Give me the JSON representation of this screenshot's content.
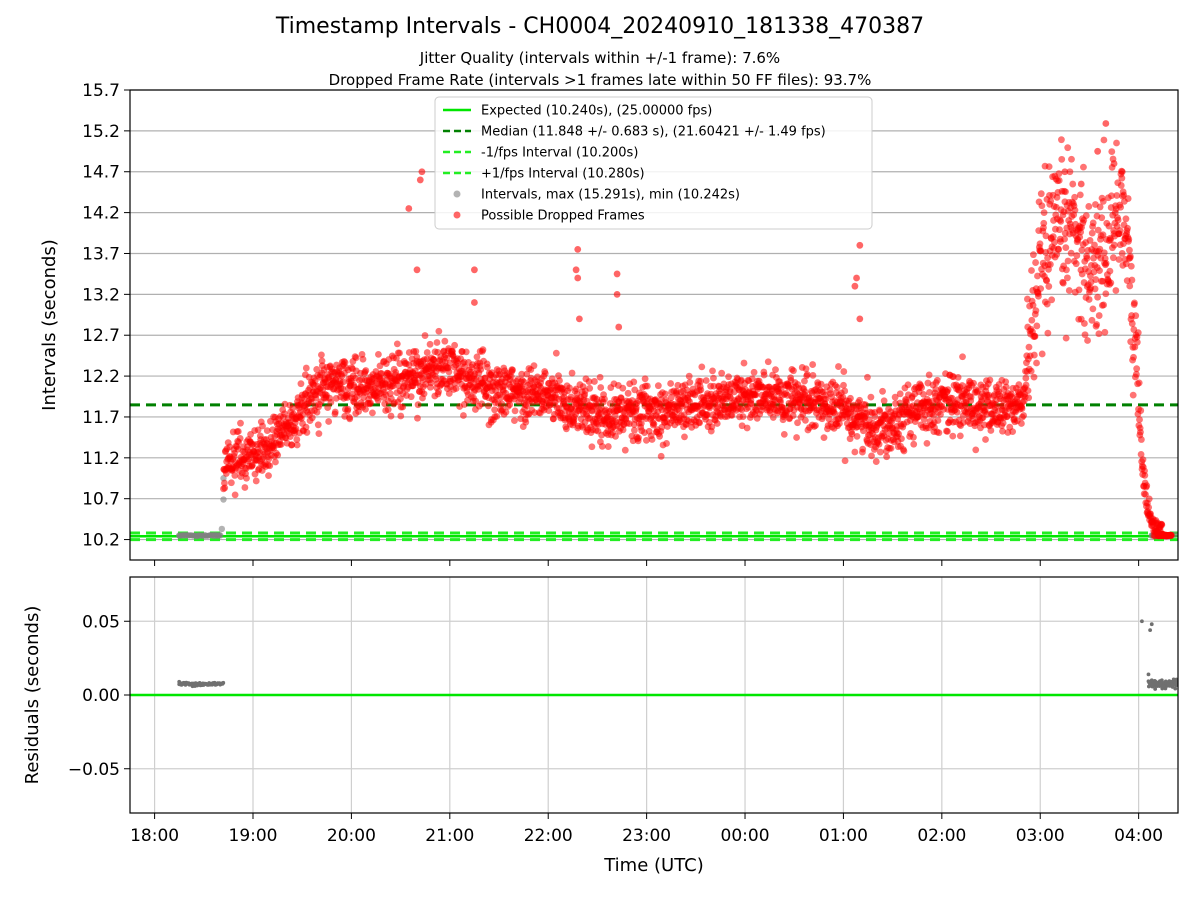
{
  "figure": {
    "title": "Timestamp Intervals - CH0004_20240910_181338_470387",
    "subtitle_1": "Jitter Quality (intervals within +/-1 frame): 7.6%",
    "subtitle_2": "Dropped Frame Rate (intervals >1 frames late within 50 FF files): 93.7%"
  },
  "chart_data": [
    {
      "type": "scatter",
      "panel": "top",
      "ylabel": "Intervals (seconds)",
      "xlabel": "",
      "ylim": [
        9.95,
        15.7
      ],
      "yticks": [
        "10.2",
        "10.7",
        "11.2",
        "11.7",
        "12.2",
        "12.7",
        "13.2",
        "13.7",
        "14.2",
        "14.7",
        "15.2",
        "15.7"
      ],
      "grid": "horizontal",
      "legend_position": "top-center",
      "reference_lines": [
        {
          "name": "Expected (10.240s), (25.00000 fps)",
          "value": 10.24,
          "style": "solid",
          "color": "#00e600"
        },
        {
          "name": "Median (11.848 +/- 0.683 s), (21.60421 +/- 1.49 fps)",
          "value": 11.848,
          "style": "dashed",
          "color": "#008000"
        },
        {
          "name": "-1/fps Interval (10.200s)",
          "value": 10.2,
          "style": "dashed",
          "color": "#22ee22"
        },
        {
          "name": "+1/fps Interval (10.280s)",
          "value": 10.28,
          "style": "dashed",
          "color": "#22ee22"
        }
      ],
      "series": [
        {
          "name": "Intervals, max (15.291s), min (10.242s)",
          "color": "#808080",
          "description_points": [
            [
              "18:15",
              10.25
            ],
            [
              "18:40",
              10.25
            ],
            [
              "18:41",
              10.33
            ],
            [
              "18:42",
              10.69
            ],
            [
              "18:42",
              10.95
            ],
            [
              "04:08",
              10.25
            ],
            [
              "04:20",
              10.25
            ],
            [
              "04:22",
              10.26
            ]
          ]
        },
        {
          "name": "Possible Dropped Frames",
          "color": "#ff0000",
          "trend": [
            [
              "18:42",
              11.0
            ],
            [
              "18:50",
              11.2
            ],
            [
              "19:10",
              11.3
            ],
            [
              "19:30",
              11.8
            ],
            [
              "19:45",
              12.1
            ],
            [
              "20:00",
              12.05
            ],
            [
              "20:20",
              12.1
            ],
            [
              "20:40",
              12.2
            ],
            [
              "20:55",
              12.35
            ],
            [
              "21:10",
              12.2
            ],
            [
              "21:30",
              12.0
            ],
            [
              "22:00",
              11.95
            ],
            [
              "22:30",
              11.75
            ],
            [
              "23:00",
              11.75
            ],
            [
              "23:30",
              11.85
            ],
            [
              "00:00",
              11.95
            ],
            [
              "00:30",
              11.9
            ],
            [
              "01:00",
              11.8
            ],
            [
              "01:20",
              11.55
            ],
            [
              "01:40",
              11.75
            ],
            [
              "02:00",
              11.9
            ],
            [
              "02:30",
              11.8
            ],
            [
              "02:50",
              11.85
            ],
            [
              "02:53",
              12.6
            ],
            [
              "03:00",
              13.4
            ],
            [
              "03:10",
              13.9
            ],
            [
              "03:20",
              14.1
            ],
            [
              "03:30",
              13.5
            ],
            [
              "03:40",
              13.7
            ],
            [
              "03:50",
              14.4
            ],
            [
              "03:55",
              13.2
            ],
            [
              "04:00",
              12.0
            ],
            [
              "04:03",
              10.9
            ],
            [
              "04:08",
              10.4
            ],
            [
              "04:15",
              10.25
            ]
          ],
          "spikes": [
            [
              "20:35",
              14.25
            ],
            [
              "20:38",
              12.5
            ],
            [
              "20:40",
              13.5
            ],
            [
              "20:42",
              14.6
            ],
            [
              "20:43",
              14.7
            ],
            [
              "21:15",
              13.5
            ],
            [
              "21:15",
              13.1
            ],
            [
              "22:18",
              13.75
            ],
            [
              "22:17",
              13.5
            ],
            [
              "22:18",
              13.4
            ],
            [
              "22:19",
              12.9
            ],
            [
              "22:42",
              13.45
            ],
            [
              "22:42",
              13.2
            ],
            [
              "22:43",
              12.8
            ],
            [
              "01:10",
              13.8
            ],
            [
              "01:08",
              13.4
            ],
            [
              "01:07",
              13.3
            ],
            [
              "01:10",
              12.9
            ],
            [
              "03:40",
              15.29
            ],
            [
              "03:35",
              14.95
            ],
            [
              "03:45",
              14.8
            ],
            [
              "03:50",
              14.7
            ],
            [
              "03:25",
              14.55
            ],
            [
              "03:15",
              14.7
            ]
          ]
        }
      ]
    },
    {
      "type": "scatter",
      "panel": "bottom",
      "ylabel": "Residuals (seconds)",
      "xlabel": "Time (UTC)",
      "ylim": [
        -0.08,
        0.08
      ],
      "yticks": [
        "−0.05",
        "0.00",
        "0.05"
      ],
      "grid": "both",
      "xticks": [
        "18:00",
        "19:00",
        "20:00",
        "21:00",
        "22:00",
        "23:00",
        "00:00",
        "01:00",
        "02:00",
        "03:00",
        "04:00"
      ],
      "reference_lines": [
        {
          "name": "",
          "value": 0.0,
          "style": "solid",
          "color": "#00e600"
        }
      ],
      "series": [
        {
          "name": "",
          "color": "#707070",
          "points": [
            [
              "18:15",
              0.009
            ],
            [
              "18:20",
              0.008
            ],
            [
              "18:25",
              0.008
            ],
            [
              "18:30",
              0.007
            ],
            [
              "18:35",
              0.007
            ],
            [
              "18:40",
              0.007
            ],
            [
              "04:02",
              0.05
            ],
            [
              "04:08",
              0.048
            ],
            [
              "04:07",
              0.044
            ],
            [
              "04:06",
              0.014
            ],
            [
              "04:08",
              0.01
            ],
            [
              "04:10",
              0.008
            ],
            [
              "04:12",
              0.007
            ],
            [
              "04:15",
              0.006
            ],
            [
              "04:20",
              0.007
            ],
            [
              "04:23",
              0.008
            ]
          ]
        }
      ]
    }
  ]
}
